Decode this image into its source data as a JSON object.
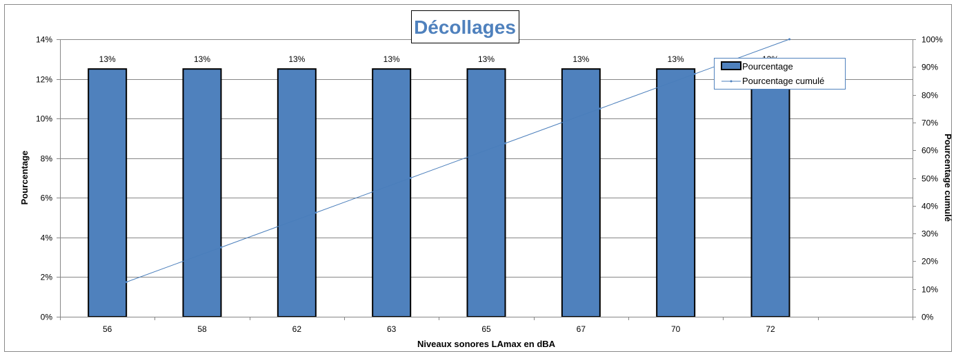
{
  "chart_data": {
    "type": "bar",
    "title": "Décollages",
    "xlabel": "Niveaux sonores LAmax en dBA",
    "ylabel": "Pourcentage",
    "y2label": "Pourcentage cumulé",
    "categories": [
      "56",
      "58",
      "62",
      "63",
      "65",
      "67",
      "70",
      "72"
    ],
    "series": [
      {
        "name": "Pourcentage",
        "type": "bar",
        "axis": "left",
        "values": [
          12.5,
          12.5,
          12.5,
          12.5,
          12.5,
          12.5,
          12.5,
          12.5
        ],
        "data_labels": [
          "13%",
          "13%",
          "13%",
          "13%",
          "13%",
          "13%",
          "13%",
          "13%"
        ],
        "color": "#4f81bd"
      },
      {
        "name": "Pourcentage cumulé",
        "type": "line",
        "axis": "right",
        "values": [
          12.5,
          25,
          37.5,
          50,
          62.5,
          75,
          87.5,
          100
        ],
        "color": "#4a7ebb"
      }
    ],
    "ylim": [
      0,
      14
    ],
    "yticks": [
      "0%",
      "2%",
      "4%",
      "6%",
      "8%",
      "10%",
      "12%",
      "14%"
    ],
    "y2lim": [
      0,
      100
    ],
    "y2ticks": [
      "0%",
      "10%",
      "20%",
      "30%",
      "40%",
      "50%",
      "60%",
      "70%",
      "80%",
      "90%",
      "100%"
    ],
    "grid": true,
    "legend": "top-right"
  }
}
